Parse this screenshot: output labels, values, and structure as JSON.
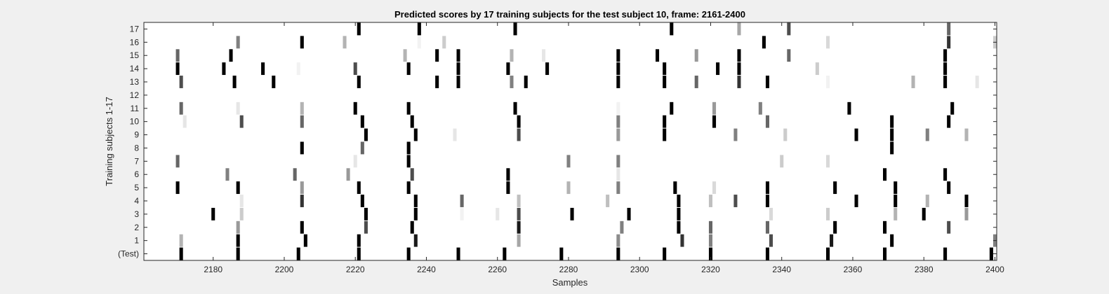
{
  "chart_data": {
    "type": "heatmap",
    "title": "Predicted scores by 17 training subjects for the test subject 10, frame: 2161-2400",
    "xlabel": "Samples",
    "ylabel": "Training subjects 1-17",
    "xlim": [
      2161,
      2400
    ],
    "x_ticks": [
      2180,
      2200,
      2220,
      2240,
      2260,
      2280,
      2300,
      2320,
      2340,
      2360,
      2380,
      2400
    ],
    "y_tick_labels": [
      "(Test)",
      "1",
      "2",
      "3",
      "4",
      "5",
      "6",
      "7",
      "8",
      "9",
      "10",
      "11",
      "12",
      "13",
      "14",
      "15",
      "16",
      "17"
    ],
    "colormap": "grayscale (white = 0, black = 1)",
    "grid": false,
    "rows": [
      {
        "label": "(Test)",
        "marks": [
          [
            2171,
            1
          ],
          [
            2187,
            1
          ],
          [
            2204,
            1
          ],
          [
            2221,
            1
          ],
          [
            2235,
            1
          ],
          [
            2249,
            1
          ],
          [
            2262,
            1
          ],
          [
            2278,
            1
          ],
          [
            2294,
            1
          ],
          [
            2307,
            1
          ],
          [
            2320,
            1
          ],
          [
            2336,
            1
          ],
          [
            2353,
            1
          ],
          [
            2369,
            1
          ],
          [
            2386,
            1
          ],
          [
            2399,
            1
          ]
        ]
      },
      {
        "label": "1",
        "marks": [
          [
            2171,
            0.3
          ],
          [
            2187,
            1
          ],
          [
            2206,
            1
          ],
          [
            2221,
            1
          ],
          [
            2237,
            0.9
          ],
          [
            2266,
            0.35
          ],
          [
            2294,
            0.45
          ],
          [
            2312,
            0.8
          ],
          [
            2320,
            0.5
          ],
          [
            2337,
            0.7
          ],
          [
            2354,
            0.9
          ],
          [
            2371,
            1
          ],
          [
            2400,
            0.5
          ]
        ]
      },
      {
        "label": "2",
        "marks": [
          [
            2187,
            0.4
          ],
          [
            2205,
            1
          ],
          [
            2223,
            0.7
          ],
          [
            2236,
            1
          ],
          [
            2266,
            0.9
          ],
          [
            2295,
            0.5
          ],
          [
            2311,
            1
          ],
          [
            2320,
            0.6
          ],
          [
            2336,
            0.6
          ],
          [
            2355,
            1
          ],
          [
            2369,
            1
          ],
          [
            2387,
            0.7
          ]
        ]
      },
      {
        "label": "3",
        "marks": [
          [
            2180,
            1
          ],
          [
            2188,
            0.2
          ],
          [
            2223,
            1
          ],
          [
            2237,
            1
          ],
          [
            2250,
            0.05
          ],
          [
            2260,
            0.1
          ],
          [
            2266,
            0.7
          ],
          [
            2281,
            1
          ],
          [
            2297,
            1
          ],
          [
            2311,
            1
          ],
          [
            2337,
            0.15
          ],
          [
            2353,
            0.2
          ],
          [
            2372,
            0.3
          ],
          [
            2380,
            1
          ],
          [
            2392,
            0.4
          ]
        ]
      },
      {
        "label": "4",
        "marks": [
          [
            2188,
            0.1
          ],
          [
            2205,
            0.8
          ],
          [
            2222,
            1
          ],
          [
            2237,
            1
          ],
          [
            2250,
            0.6
          ],
          [
            2266,
            0.25
          ],
          [
            2291,
            0.25
          ],
          [
            2311,
            1
          ],
          [
            2320,
            0.25
          ],
          [
            2327,
            0.7
          ],
          [
            2336,
            1
          ],
          [
            2361,
            1
          ],
          [
            2372,
            1
          ],
          [
            2381,
            0.3
          ],
          [
            2392,
            1
          ]
        ]
      },
      {
        "label": "5",
        "marks": [
          [
            2170,
            1
          ],
          [
            2187,
            1
          ],
          [
            2205,
            0.4
          ],
          [
            2221,
            1
          ],
          [
            2235,
            1
          ],
          [
            2263,
            1
          ],
          [
            2280,
            0.3
          ],
          [
            2294,
            0.5
          ],
          [
            2310,
            1
          ],
          [
            2321,
            0.15
          ],
          [
            2336,
            1
          ],
          [
            2355,
            1
          ],
          [
            2372,
            1
          ],
          [
            2387,
            1
          ]
        ]
      },
      {
        "label": "6",
        "marks": [
          [
            2184,
            0.5
          ],
          [
            2203,
            0.6
          ],
          [
            2218,
            0.4
          ],
          [
            2236,
            0.7
          ],
          [
            2263,
            1
          ],
          [
            2294,
            0.1
          ],
          [
            2369,
            1
          ],
          [
            2386,
            1
          ]
        ]
      },
      {
        "label": "7",
        "marks": [
          [
            2170,
            0.6
          ],
          [
            2220,
            0.1
          ],
          [
            2235,
            1
          ],
          [
            2280,
            0.5
          ],
          [
            2294,
            0.5
          ],
          [
            2340,
            0.2
          ],
          [
            2353,
            0.15
          ]
        ]
      },
      {
        "label": "8",
        "marks": [
          [
            2205,
            1
          ],
          [
            2222,
            0.6
          ],
          [
            2235,
            1
          ],
          [
            2371,
            1
          ]
        ]
      },
      {
        "label": "9",
        "marks": [
          [
            2223,
            1
          ],
          [
            2237,
            1
          ],
          [
            2248,
            0.1
          ],
          [
            2266,
            0.7
          ],
          [
            2294,
            0.4
          ],
          [
            2307,
            1
          ],
          [
            2327,
            0.5
          ],
          [
            2341,
            0.2
          ],
          [
            2361,
            1
          ],
          [
            2371,
            1
          ],
          [
            2381,
            0.5
          ],
          [
            2392,
            0.3
          ]
        ]
      },
      {
        "label": "10",
        "marks": [
          [
            2172,
            0.1
          ],
          [
            2188,
            0.7
          ],
          [
            2205,
            0.6
          ],
          [
            2222,
            1
          ],
          [
            2236,
            1
          ],
          [
            2266,
            1
          ],
          [
            2294,
            0.5
          ],
          [
            2307,
            1
          ],
          [
            2321,
            1
          ],
          [
            2336,
            0.6
          ],
          [
            2371,
            1
          ],
          [
            2387,
            1
          ]
        ]
      },
      {
        "label": "11",
        "marks": [
          [
            2171,
            0.6
          ],
          [
            2187,
            0.1
          ],
          [
            2205,
            0.3
          ],
          [
            2220,
            1
          ],
          [
            2235,
            1
          ],
          [
            2265,
            1
          ],
          [
            2294,
            0.05
          ],
          [
            2309,
            1
          ],
          [
            2321,
            0.4
          ],
          [
            2334,
            0.5
          ],
          [
            2359,
            1
          ],
          [
            2388,
            1
          ]
        ]
      },
      {
        "label": "12",
        "marks": []
      },
      {
        "label": "13",
        "marks": [
          [
            2171,
            0.7
          ],
          [
            2186,
            1
          ],
          [
            2197,
            1
          ],
          [
            2221,
            1
          ],
          [
            2243,
            1
          ],
          [
            2249,
            1
          ],
          [
            2264,
            0.5
          ],
          [
            2268,
            1
          ],
          [
            2294,
            1
          ],
          [
            2307,
            1
          ],
          [
            2316,
            0.6
          ],
          [
            2328,
            0.8
          ],
          [
            2336,
            1
          ],
          [
            2353,
            0.05
          ],
          [
            2377,
            0.3
          ],
          [
            2386,
            1
          ],
          [
            2395,
            0.1
          ]
        ]
      },
      {
        "label": "14",
        "marks": [
          [
            2170,
            1
          ],
          [
            2183,
            1
          ],
          [
            2194,
            1
          ],
          [
            2204,
            0.05
          ],
          [
            2220,
            0.7
          ],
          [
            2235,
            1
          ],
          [
            2249,
            1
          ],
          [
            2263,
            1
          ],
          [
            2274,
            1
          ],
          [
            2294,
            1
          ],
          [
            2307,
            1
          ],
          [
            2322,
            1
          ],
          [
            2328,
            1
          ],
          [
            2350,
            0.2
          ],
          [
            2386,
            1
          ]
        ]
      },
      {
        "label": "15",
        "marks": [
          [
            2170,
            0.6
          ],
          [
            2185,
            1
          ],
          [
            2234,
            0.3
          ],
          [
            2243,
            1
          ],
          [
            2249,
            1
          ],
          [
            2264,
            0.3
          ],
          [
            2273,
            0.1
          ],
          [
            2294,
            1
          ],
          [
            2305,
            1
          ],
          [
            2316,
            0.4
          ],
          [
            2328,
            1
          ],
          [
            2342,
            0.6
          ],
          [
            2386,
            1
          ]
        ]
      },
      {
        "label": "16",
        "marks": [
          [
            2187,
            0.5
          ],
          [
            2205,
            1
          ],
          [
            2217,
            0.3
          ],
          [
            2238,
            0.05
          ],
          [
            2245,
            0.2
          ],
          [
            2335,
            1
          ],
          [
            2353,
            0.15
          ],
          [
            2387,
            0.8
          ],
          [
            2400,
            0.2
          ]
        ]
      },
      {
        "label": "17",
        "marks": [
          [
            2221,
            1
          ],
          [
            2238,
            1
          ],
          [
            2265,
            1
          ],
          [
            2309,
            1
          ],
          [
            2328,
            0.35
          ],
          [
            2342,
            0.7
          ],
          [
            2387,
            0.6
          ]
        ]
      }
    ]
  }
}
